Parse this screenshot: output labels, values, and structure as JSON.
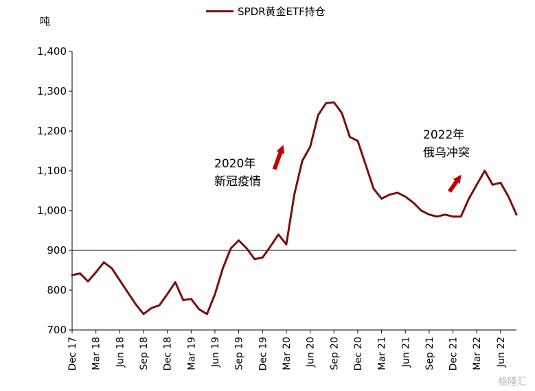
{
  "chart_data": {
    "type": "line",
    "ylabel": "吨",
    "ylim": [
      700,
      1400
    ],
    "yticks": [
      700,
      800,
      900,
      1000,
      1100,
      1200,
      1300,
      1400
    ],
    "ytick_labels": [
      "700",
      "800",
      "900",
      "1,000",
      "1,100",
      "1,200",
      "1,300",
      "1,400"
    ],
    "xlim": [
      "2017-12",
      "2022-08"
    ],
    "xtick_labels": [
      "Dec 17",
      "Mar 18",
      "Jun 18",
      "Sep 18",
      "Dec 18",
      "Mar 19",
      "Jun 19",
      "Sep 19",
      "Dec 19",
      "Mar 20",
      "Jun 20",
      "Sep 20",
      "Dec 20",
      "Mar 21",
      "Jun 21",
      "Sep 21",
      "Dec 21",
      "Mar 22",
      "Jun 22"
    ],
    "reference_line": 900,
    "series": [
      {
        "name": "SPDR黄金ETF持仓",
        "color": "#7B0C0C",
        "x": [
          "2017-12",
          "2018-01",
          "2018-02",
          "2018-03",
          "2018-04",
          "2018-05",
          "2018-06",
          "2018-07",
          "2018-08",
          "2018-09",
          "2018-10",
          "2018-11",
          "2018-12",
          "2019-01",
          "2019-02",
          "2019-03",
          "2019-04",
          "2019-05",
          "2019-06",
          "2019-07",
          "2019-08",
          "2019-09",
          "2019-10",
          "2019-11",
          "2019-12",
          "2020-01",
          "2020-02",
          "2020-03",
          "2020-04",
          "2020-05",
          "2020-06",
          "2020-07",
          "2020-08",
          "2020-09",
          "2020-10",
          "2020-11",
          "2020-12",
          "2021-01",
          "2021-02",
          "2021-03",
          "2021-04",
          "2021-05",
          "2021-06",
          "2021-07",
          "2021-08",
          "2021-09",
          "2021-10",
          "2021-11",
          "2021-12",
          "2022-01",
          "2022-02",
          "2022-03",
          "2022-04",
          "2022-05",
          "2022-06",
          "2022-07",
          "2022-08"
        ],
        "values": [
          838,
          842,
          822,
          845,
          870,
          855,
          825,
          795,
          765,
          740,
          755,
          762,
          790,
          820,
          775,
          778,
          752,
          740,
          790,
          855,
          905,
          925,
          905,
          878,
          882,
          910,
          940,
          915,
          1040,
          1125,
          1160,
          1240,
          1270,
          1272,
          1245,
          1185,
          1175,
          1115,
          1055,
          1030,
          1040,
          1045,
          1035,
          1020,
          1000,
          990,
          985,
          990,
          985,
          985,
          1030,
          1065,
          1100,
          1065,
          1070,
          1035,
          990
        ]
      }
    ]
  },
  "legend": {
    "label": "SPDR黄金ETF持仓"
  },
  "annotations": [
    {
      "lines": [
        "2020年",
        "新冠疫情"
      ]
    },
    {
      "lines": [
        "2022年",
        "俄乌冲突"
      ]
    }
  ],
  "watermark": "格隆汇"
}
